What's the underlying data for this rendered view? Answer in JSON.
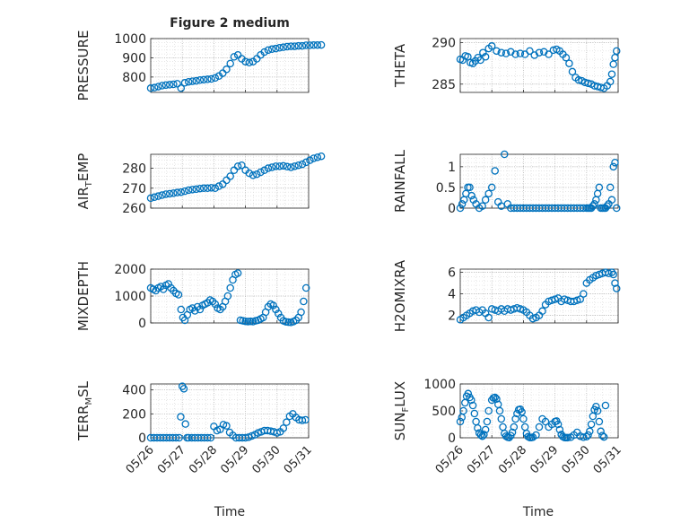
{
  "figure_title": "Figure 2 medium",
  "colors": {
    "marker": "#0072BD",
    "axis": "#262626",
    "grid": "#b0b0b0",
    "minor_grid": "#d8d8d8"
  },
  "chart_data": [
    {
      "type": "scatter",
      "ylabel": "PRESSURE",
      "ylim": [
        720,
        1000
      ],
      "yticks": [
        800,
        900,
        1000
      ],
      "xlim": [
        "05/26",
        "05/31"
      ],
      "xticks": [
        "05/26",
        "05/27",
        "05/28",
        "05/29",
        "05/30",
        "05/31"
      ],
      "show_xticklabels": false,
      "x": [
        26.0,
        26.12,
        26.24,
        26.36,
        26.48,
        26.6,
        26.72,
        26.84,
        26.96,
        27.08,
        27.2,
        27.32,
        27.44,
        27.56,
        27.68,
        27.8,
        27.92,
        28.04,
        28.16,
        28.28,
        28.4,
        28.52,
        28.64,
        28.76,
        28.88,
        29.0,
        29.12,
        29.24,
        29.36,
        29.48,
        29.6,
        29.72,
        29.84,
        29.96,
        30.08,
        30.2,
        30.32,
        30.44,
        30.56,
        30.68,
        30.8,
        30.92,
        31.04,
        31.16,
        31.28,
        31.4
      ],
      "y": [
        742,
        745,
        750,
        755,
        758,
        760,
        762,
        765,
        742,
        770,
        775,
        778,
        780,
        784,
        786,
        788,
        790,
        795,
        805,
        820,
        840,
        870,
        905,
        915,
        895,
        880,
        875,
        880,
        895,
        915,
        930,
        940,
        945,
        948,
        952,
        955,
        958,
        960,
        960,
        962,
        962,
        965,
        965,
        966,
        966,
        967
      ]
    },
    {
      "type": "scatter",
      "ylabel": "THETA",
      "ylim": [
        284,
        290.5
      ],
      "yticks": [
        285,
        290
      ],
      "xlim": [
        "05/26",
        "05/31"
      ],
      "xticks": [
        "05/26",
        "05/27",
        "05/28",
        "05/29",
        "05/30",
        "05/31"
      ],
      "show_xticklabels": false,
      "x": [
        26.0,
        26.08,
        26.16,
        26.24,
        26.32,
        26.4,
        26.48,
        26.56,
        26.64,
        26.72,
        26.8,
        26.9,
        27.0,
        27.15,
        27.3,
        27.45,
        27.6,
        27.75,
        27.9,
        28.05,
        28.2,
        28.35,
        28.5,
        28.65,
        28.8,
        28.95,
        29.05,
        29.15,
        29.25,
        29.35,
        29.45,
        29.55,
        29.65,
        29.75,
        29.85,
        29.95,
        30.05,
        30.15,
        30.25,
        30.35,
        30.45,
        30.55,
        30.65,
        30.75,
        30.8,
        30.85,
        30.9,
        30.95
      ],
      "y": [
        288.0,
        287.9,
        288.4,
        288.3,
        287.6,
        287.5,
        287.8,
        288.2,
        287.9,
        288.8,
        288.3,
        289.3,
        289.6,
        289.0,
        288.8,
        288.7,
        288.9,
        288.6,
        288.7,
        288.6,
        289.0,
        288.5,
        288.8,
        288.9,
        288.6,
        289.1,
        289.2,
        289.0,
        288.6,
        288.2,
        287.5,
        286.5,
        285.8,
        285.5,
        285.4,
        285.2,
        285.1,
        285.0,
        284.8,
        284.7,
        284.6,
        284.5,
        284.8,
        285.3,
        286.2,
        287.4,
        288.2,
        289.0
      ]
    },
    {
      "type": "scatter",
      "ylabel": "AIR_TEMP",
      "ylim": [
        260,
        287
      ],
      "yticks": [
        260,
        270,
        280
      ],
      "xlim": [
        "05/26",
        "05/31"
      ],
      "xticks": [
        "05/26",
        "05/27",
        "05/28",
        "05/29",
        "05/30",
        "05/31"
      ],
      "show_xticklabels": false,
      "x": [
        26.0,
        26.12,
        26.24,
        26.36,
        26.48,
        26.6,
        26.72,
        26.84,
        26.96,
        27.08,
        27.2,
        27.32,
        27.44,
        27.56,
        27.68,
        27.8,
        27.92,
        28.04,
        28.16,
        28.28,
        28.4,
        28.52,
        28.64,
        28.76,
        28.88,
        29.0,
        29.12,
        29.24,
        29.36,
        29.48,
        29.6,
        29.72,
        29.84,
        29.96,
        30.08,
        30.2,
        30.32,
        30.44,
        30.56,
        30.68,
        30.8,
        30.92,
        31.04,
        31.16,
        31.28,
        31.4
      ],
      "y": [
        265,
        265.5,
        266,
        266.5,
        267,
        267.2,
        267.5,
        267.8,
        268,
        268.5,
        269,
        269.3,
        269.5,
        269.8,
        270,
        270,
        270.2,
        270,
        271,
        272,
        274,
        276,
        279,
        281,
        281.5,
        279,
        277.5,
        276.5,
        277,
        278,
        279,
        280,
        280.5,
        281,
        281,
        281.2,
        280.8,
        280.5,
        281,
        281.5,
        282,
        283,
        284,
        285,
        285.5,
        286
      ]
    },
    {
      "type": "scatter",
      "ylabel": "RAINFALL",
      "ylim": [
        0,
        1.3
      ],
      "yticks": [
        0,
        0.5,
        1
      ],
      "xlim": [
        "05/26",
        "05/31"
      ],
      "xticks": [
        "05/26",
        "05/27",
        "05/28",
        "05/29",
        "05/30",
        "05/31"
      ],
      "show_xticklabels": false,
      "x": [
        26.0,
        26.06,
        26.12,
        26.18,
        26.24,
        26.3,
        26.36,
        26.42,
        26.5,
        26.6,
        26.7,
        26.8,
        26.9,
        27.0,
        27.1,
        27.2,
        27.3,
        27.4,
        27.5,
        27.6,
        27.7,
        27.8,
        27.9,
        28.0,
        28.1,
        28.2,
        28.3,
        28.4,
        28.5,
        28.6,
        28.7,
        28.8,
        28.9,
        29.0,
        29.1,
        29.2,
        29.3,
        29.4,
        29.5,
        29.6,
        29.7,
        29.8,
        29.9,
        30.0,
        30.05,
        30.1,
        30.15,
        30.2,
        30.25,
        30.3,
        30.35,
        30.4,
        30.45,
        30.5,
        30.55,
        30.6,
        30.65,
        30.7,
        30.75,
        30.8,
        30.85,
        30.9,
        30.95
      ],
      "y": [
        0,
        0.1,
        0.2,
        0.35,
        0.5,
        0.5,
        0.3,
        0.2,
        0.1,
        0,
        0.05,
        0.2,
        0.35,
        0.5,
        0.9,
        0.15,
        0.05,
        1.3,
        0.1,
        0,
        0,
        0,
        0,
        0,
        0,
        0,
        0,
        0,
        0,
        0,
        0,
        0,
        0,
        0,
        0,
        0,
        0,
        0,
        0,
        0,
        0,
        0,
        0,
        0,
        0,
        0,
        0,
        0.05,
        0.1,
        0.2,
        0.35,
        0.5,
        0,
        0,
        0,
        0,
        0.05,
        0.1,
        0.5,
        0.2,
        1.0,
        1.1,
        0
      ]
    },
    {
      "type": "scatter",
      "ylabel": "MIXDEPTH",
      "ylim": [
        0,
        2000
      ],
      "yticks": [
        0,
        1000,
        2000
      ],
      "xlim": [
        "05/26",
        "05/31"
      ],
      "xticks": [
        "05/26",
        "05/27",
        "05/28",
        "05/29",
        "05/30",
        "05/31"
      ],
      "show_xticklabels": false,
      "x": [
        26.0,
        26.08,
        26.16,
        26.24,
        26.32,
        26.4,
        26.48,
        26.56,
        26.64,
        26.72,
        26.8,
        26.88,
        26.96,
        27.02,
        27.08,
        27.16,
        27.24,
        27.32,
        27.4,
        27.48,
        27.56,
        27.64,
        27.72,
        27.8,
        27.88,
        27.96,
        28.04,
        28.12,
        28.2,
        28.28,
        28.36,
        28.44,
        28.52,
        28.6,
        28.68,
        28.76,
        28.84,
        28.92,
        29.0,
        29.08,
        29.16,
        29.24,
        29.32,
        29.4,
        29.48,
        29.56,
        29.64,
        29.72,
        29.8,
        29.88,
        29.96,
        30.04,
        30.12,
        30.2,
        30.28,
        30.36,
        30.44,
        30.52,
        30.6,
        30.68,
        30.76,
        30.84,
        30.92
      ],
      "y": [
        1300,
        1250,
        1200,
        1300,
        1350,
        1250,
        1400,
        1450,
        1300,
        1200,
        1100,
        1050,
        500,
        200,
        100,
        300,
        500,
        550,
        450,
        600,
        500,
        650,
        700,
        750,
        850,
        800,
        700,
        550,
        500,
        600,
        800,
        1000,
        1300,
        1600,
        1800,
        1850,
        100,
        80,
        60,
        50,
        60,
        50,
        80,
        100,
        150,
        200,
        400,
        600,
        700,
        650,
        500,
        350,
        200,
        80,
        40,
        30,
        20,
        50,
        100,
        200,
        400,
        800,
        1300
      ]
    },
    {
      "type": "scatter",
      "ylabel": "H2OMIXRA",
      "ylim": [
        1.3,
        6.3
      ],
      "yticks": [
        2,
        4,
        6
      ],
      "xlim": [
        "05/26",
        "05/31"
      ],
      "xticks": [
        "05/26",
        "05/27",
        "05/28",
        "05/29",
        "05/30",
        "05/31"
      ],
      "show_xticklabels": false,
      "x": [
        26.0,
        26.1,
        26.2,
        26.3,
        26.4,
        26.5,
        26.6,
        26.7,
        26.8,
        26.9,
        27.0,
        27.1,
        27.2,
        27.3,
        27.4,
        27.5,
        27.6,
        27.7,
        27.8,
        27.9,
        28.0,
        28.1,
        28.2,
        28.3,
        28.4,
        28.5,
        28.6,
        28.7,
        28.8,
        28.9,
        29.0,
        29.1,
        29.2,
        29.3,
        29.4,
        29.5,
        29.6,
        29.7,
        29.8,
        29.9,
        30.0,
        30.1,
        30.2,
        30.3,
        30.4,
        30.5,
        30.6,
        30.7,
        30.8,
        30.85,
        30.9,
        30.95
      ],
      "y": [
        1.6,
        1.8,
        2.0,
        2.2,
        2.4,
        2.5,
        2.3,
        2.5,
        2.2,
        1.8,
        2.6,
        2.5,
        2.4,
        2.6,
        2.4,
        2.6,
        2.5,
        2.6,
        2.7,
        2.6,
        2.5,
        2.3,
        2.0,
        1.7,
        1.8,
        2.0,
        2.4,
        3.0,
        3.3,
        3.4,
        3.5,
        3.6,
        3.3,
        3.5,
        3.4,
        3.3,
        3.3,
        3.4,
        3.5,
        4.0,
        5.0,
        5.3,
        5.5,
        5.7,
        5.8,
        5.9,
        6.0,
        5.9,
        6.0,
        5.8,
        5.0,
        4.5
      ]
    },
    {
      "type": "scatter",
      "ylabel": "TERR_MSL",
      "ylim": [
        0,
        450
      ],
      "yticks": [
        0,
        200,
        400
      ],
      "xlim": [
        "05/26",
        "05/31"
      ],
      "xticks": [
        "05/26",
        "05/27",
        "05/28",
        "05/29",
        "05/30",
        "05/31"
      ],
      "show_xticklabels": true,
      "x": [
        26.0,
        26.1,
        26.2,
        26.3,
        26.4,
        26.5,
        26.6,
        26.7,
        26.8,
        26.9,
        26.95,
        27.0,
        27.05,
        27.1,
        27.15,
        27.2,
        27.3,
        27.4,
        27.5,
        27.6,
        27.7,
        27.8,
        27.9,
        28.0,
        28.1,
        28.2,
        28.3,
        28.4,
        28.5,
        28.6,
        28.7,
        28.8,
        28.9,
        29.0,
        29.1,
        29.2,
        29.3,
        29.4,
        29.5,
        29.6,
        29.7,
        29.8,
        29.9,
        30.0,
        30.1,
        30.2,
        30.3,
        30.4,
        30.5,
        30.6,
        30.7,
        30.8,
        30.9
      ],
      "y": [
        0,
        0,
        0,
        0,
        0,
        0,
        0,
        0,
        0,
        0,
        175,
        430,
        410,
        115,
        0,
        0,
        0,
        0,
        0,
        0,
        0,
        0,
        0,
        95,
        60,
        70,
        110,
        100,
        45,
        20,
        0,
        0,
        0,
        0,
        5,
        15,
        25,
        40,
        50,
        60,
        60,
        55,
        50,
        40,
        50,
        80,
        130,
        180,
        200,
        170,
        150,
        145,
        150
      ]
    },
    {
      "type": "scatter",
      "ylabel": "SUN_FLUX",
      "ylim": [
        0,
        1000
      ],
      "yticks": [
        0,
        500,
        1000
      ],
      "xlim": [
        "05/26",
        "05/31"
      ],
      "xticks": [
        "05/26",
        "05/27",
        "05/28",
        "05/29",
        "05/30",
        "05/31"
      ],
      "show_xticklabels": true,
      "x": [
        26.0,
        26.05,
        26.1,
        26.15,
        26.2,
        26.25,
        26.3,
        26.35,
        26.4,
        26.45,
        26.5,
        26.55,
        26.6,
        26.65,
        26.7,
        26.75,
        26.8,
        26.85,
        26.9,
        27.0,
        27.05,
        27.1,
        27.15,
        27.2,
        27.25,
        27.3,
        27.35,
        27.4,
        27.45,
        27.5,
        27.55,
        27.6,
        27.65,
        27.7,
        27.75,
        27.8,
        27.85,
        27.9,
        27.95,
        28.0,
        28.05,
        28.1,
        28.15,
        28.2,
        28.25,
        28.3,
        28.4,
        28.5,
        28.6,
        28.7,
        28.8,
        28.9,
        29.0,
        29.05,
        29.1,
        29.15,
        29.2,
        29.25,
        29.3,
        29.35,
        29.4,
        29.5,
        29.6,
        29.7,
        29.8,
        29.9,
        30.0,
        30.05,
        30.1,
        30.15,
        30.2,
        30.25,
        30.3,
        30.35,
        30.4,
        30.45,
        30.5,
        30.55,
        30.6
      ],
      "y": [
        300,
        380,
        500,
        650,
        770,
        820,
        750,
        700,
        600,
        450,
        300,
        180,
        90,
        50,
        30,
        60,
        150,
        300,
        500,
        700,
        740,
        750,
        720,
        620,
        500,
        350,
        200,
        80,
        30,
        10,
        5,
        40,
        100,
        200,
        350,
        450,
        520,
        530,
        480,
        350,
        200,
        80,
        20,
        5,
        5,
        10,
        50,
        200,
        350,
        300,
        200,
        250,
        300,
        310,
        250,
        150,
        60,
        20,
        5,
        3,
        2,
        10,
        50,
        100,
        30,
        10,
        20,
        50,
        120,
        250,
        400,
        520,
        580,
        500,
        300,
        120,
        40,
        15,
        600
      ]
    }
  ]
}
